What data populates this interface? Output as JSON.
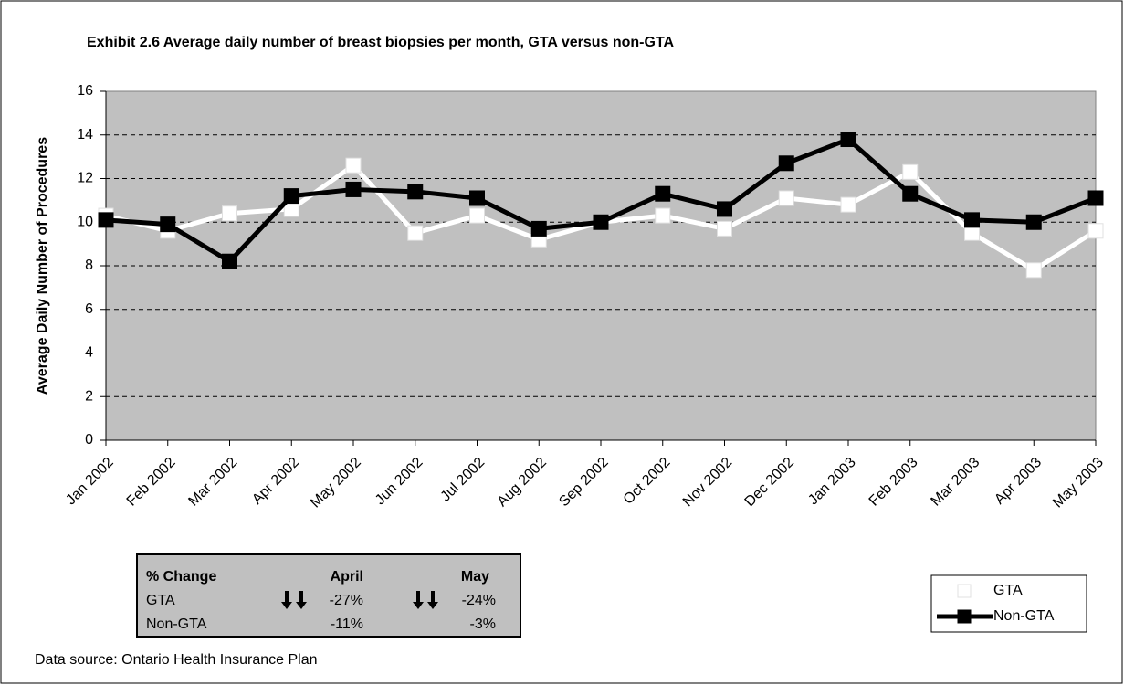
{
  "chart_data": {
    "type": "line",
    "title": "Exhibit 2.6 Average daily number of breast biopsies per month, GTA versus non-GTA",
    "y_label": "Average Daily Number of Procedures",
    "categories": [
      "Jan 2002",
      "Feb 2002",
      "Mar 2002",
      "Apr 2002",
      "May 2002",
      "Jun 2002",
      "Jul 2002",
      "Aug 2002",
      "Sep 2002",
      "Oct 2002",
      "Nov 2002",
      "Dec 2002",
      "Jan 2003",
      "Feb 2003",
      "Mar 2003",
      "Apr 2003",
      "May 2003"
    ],
    "series": [
      {
        "name": "GTA",
        "color": "#ffffff",
        "values": [
          10.3,
          9.6,
          10.4,
          10.6,
          12.6,
          9.5,
          10.3,
          9.2,
          10.0,
          10.3,
          9.7,
          11.1,
          10.8,
          12.3,
          9.5,
          7.8,
          9.6
        ]
      },
      {
        "name": "Non-GTA",
        "color": "#000000",
        "values": [
          10.1,
          9.9,
          8.2,
          11.2,
          11.5,
          11.4,
          11.1,
          9.7,
          10.0,
          11.3,
          10.6,
          12.7,
          13.8,
          11.3,
          10.1,
          10.0,
          11.1
        ]
      }
    ],
    "ylim": [
      0,
      16
    ],
    "yticks": [
      0,
      2,
      4,
      6,
      8,
      10,
      12,
      14,
      16
    ],
    "grid": true,
    "legend": "bottom-right",
    "change_table": {
      "headers": [
        "% Change",
        "April",
        "May"
      ],
      "rows": [
        [
          "GTA",
          "-27%",
          "-24%"
        ],
        [
          "Non-GTA",
          "-11%",
          "-3%"
        ]
      ]
    },
    "source": "Data source: Ontario Health Insurance Plan"
  }
}
